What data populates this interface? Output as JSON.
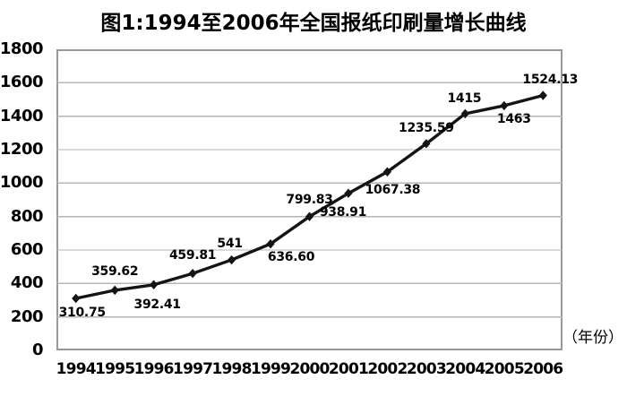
{
  "chart_data": {
    "type": "line",
    "title": "图1:1994至2006年全国报纸印刷量增长曲线",
    "xlabel": "（年份）",
    "ylabel": "",
    "categories": [
      "1994",
      "1995",
      "1996",
      "1997",
      "1998",
      "1999",
      "2000",
      "2001",
      "2002",
      "2003",
      "2004",
      "2005",
      "2006"
    ],
    "series": [
      {
        "name": "newspaper-print-volume",
        "values": [
          310.75,
          359.62,
          392.41,
          459.81,
          541,
          636.6,
          799.83,
          938.91,
          1067.38,
          1235.59,
          1415,
          1463,
          1524.13
        ],
        "point_labels": [
          "310.75",
          "359.62",
          "392.41",
          "459.81",
          "541",
          "636.60",
          "799.83",
          "938.91",
          "1067.38",
          "1235.59",
          "1415",
          "1463",
          "1524.13"
        ],
        "label_offsets": [
          [
            7,
            16
          ],
          [
            0,
            -21
          ],
          [
            4,
            22
          ],
          [
            0,
            -20
          ],
          [
            -2,
            -18
          ],
          [
            23,
            15
          ],
          [
            0,
            -19
          ],
          [
            -6,
            21
          ],
          [
            6,
            20
          ],
          [
            0,
            -17
          ],
          [
            -1,
            -17
          ],
          [
            11,
            15
          ],
          [
            8,
            -17
          ]
        ]
      }
    ],
    "ylim": [
      0,
      1800
    ],
    "ytick_step": 200,
    "yticks": [
      0,
      200,
      400,
      600,
      800,
      1000,
      1200,
      1400,
      1600,
      1800
    ],
    "grid": true,
    "legend": "none",
    "marker": "diamond",
    "colors": {
      "line": "#141414",
      "marker": "#141414",
      "grid": "#b5b5b5",
      "plot_border": "#979797",
      "text": "#000000",
      "background": "#ffffff"
    }
  }
}
